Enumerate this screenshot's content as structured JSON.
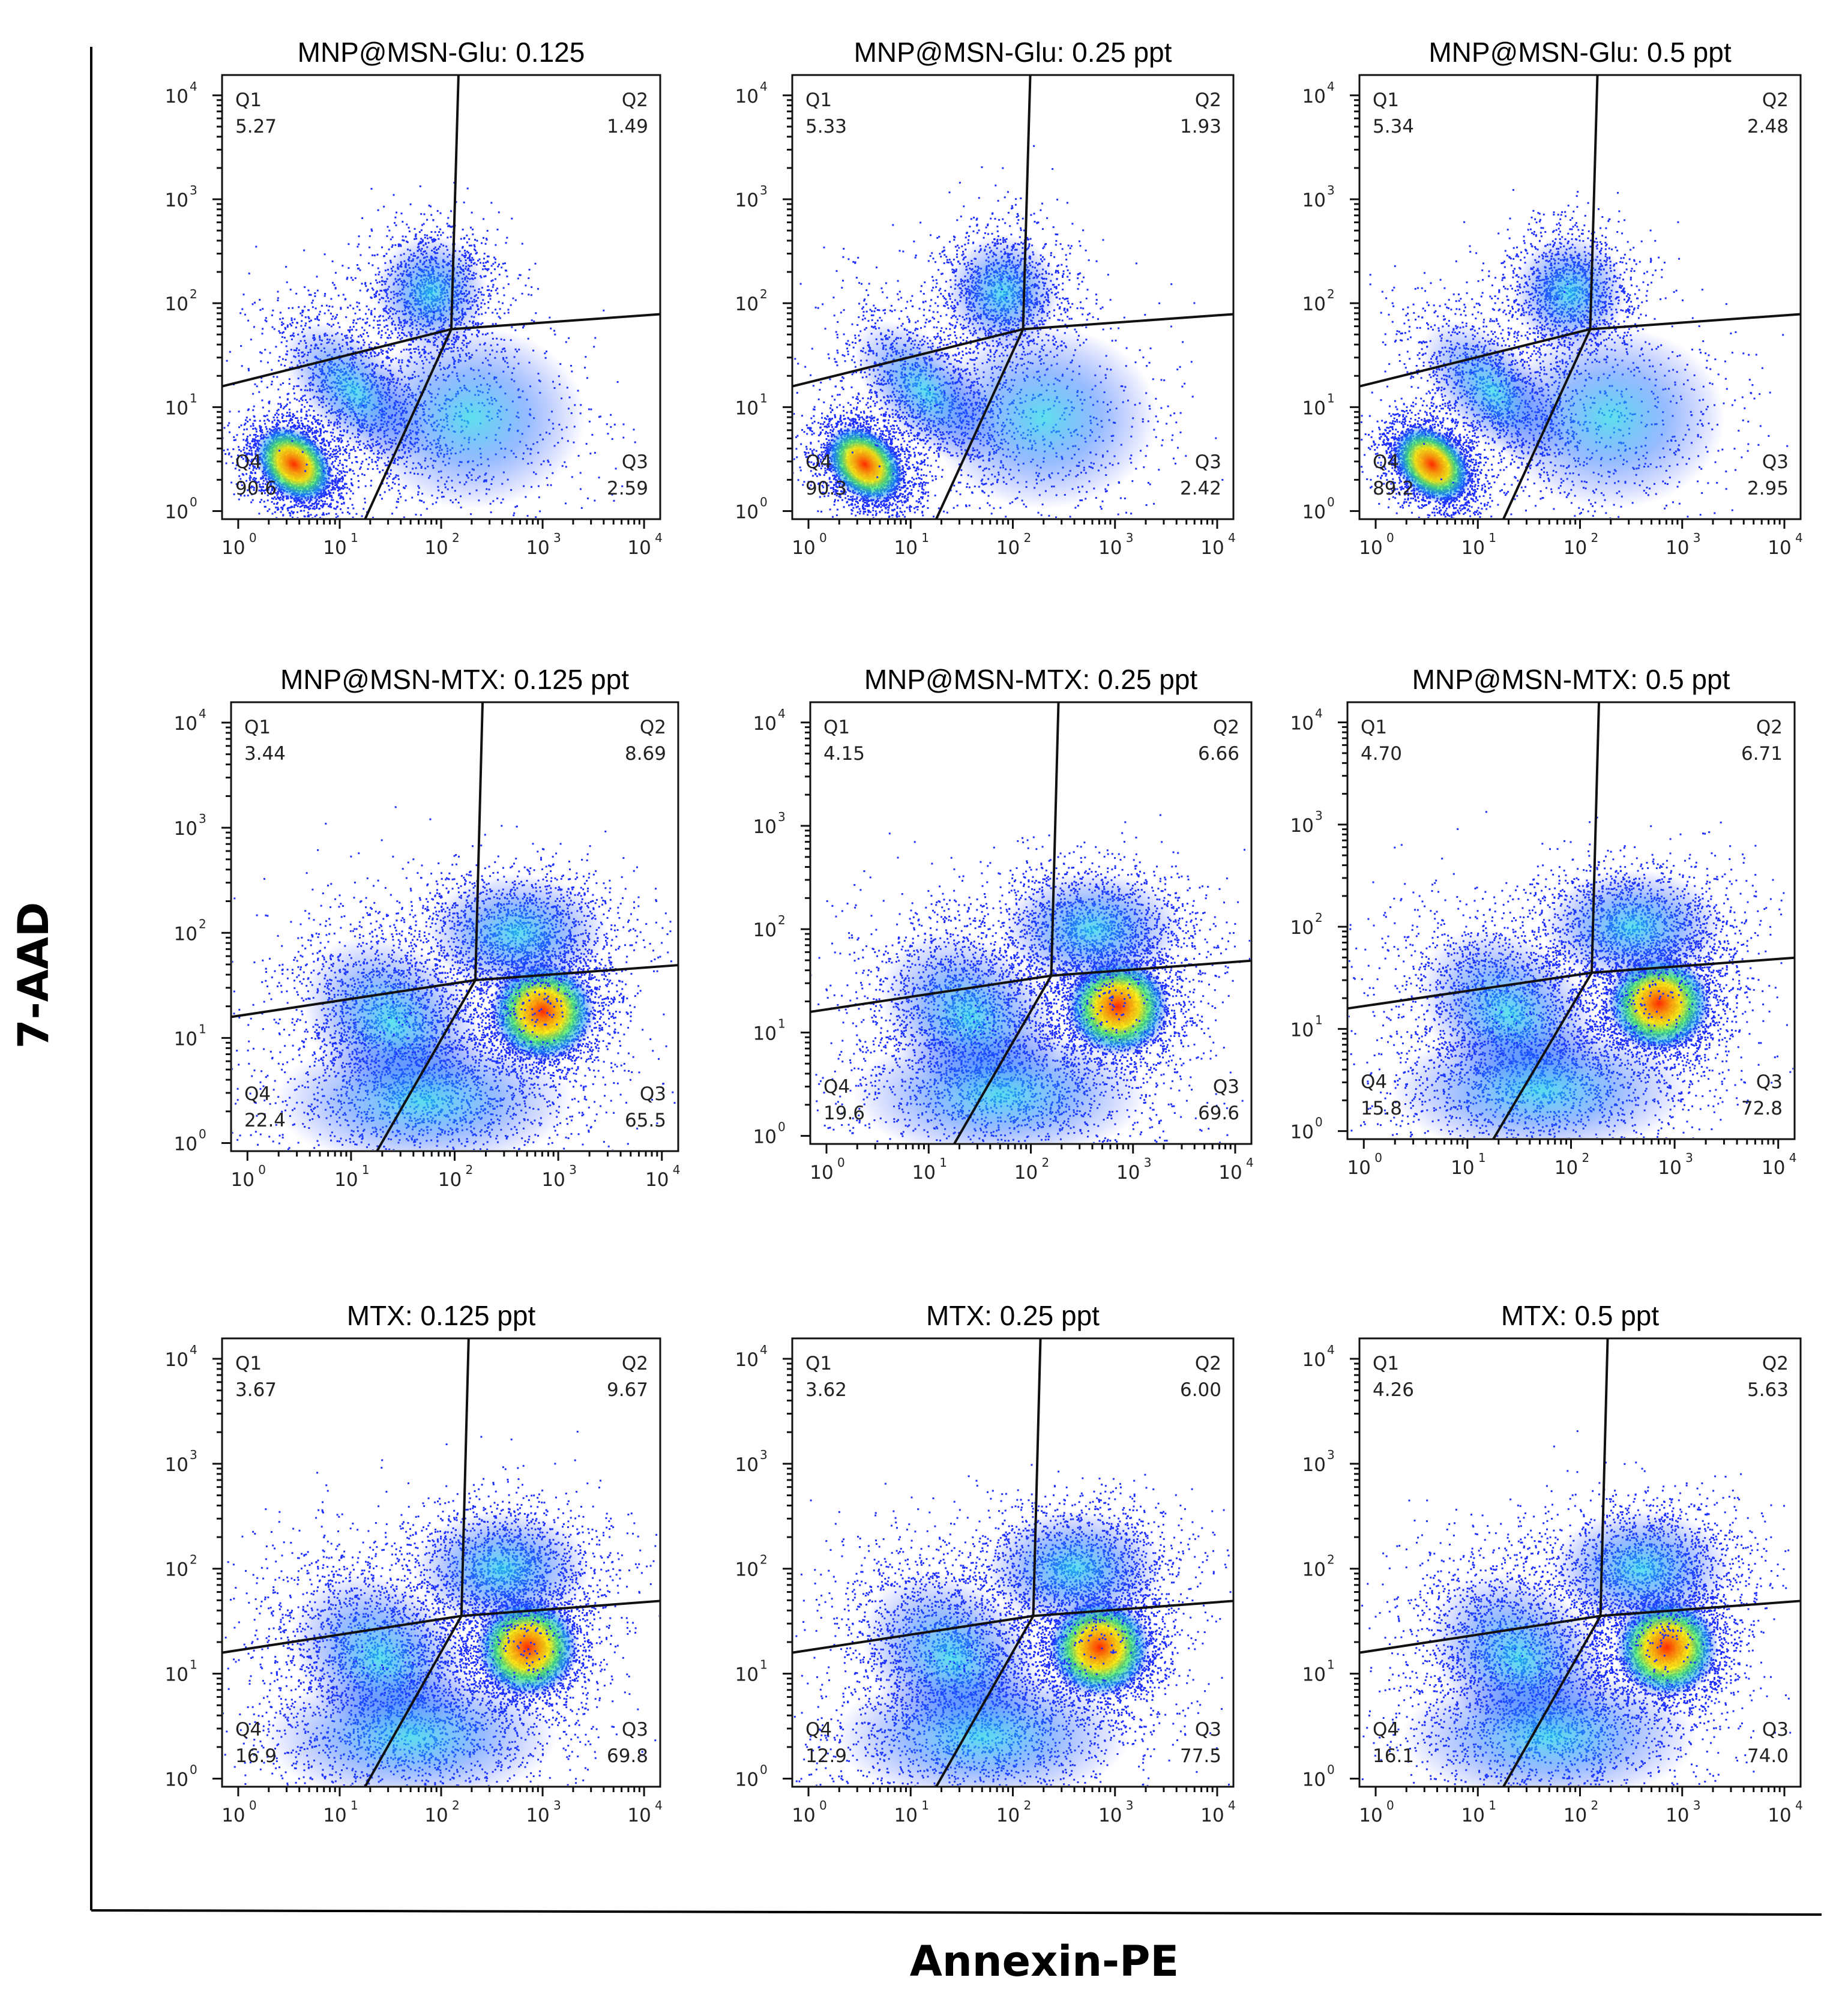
{
  "chart_data": {
    "type": "scatter",
    "subtype": "flow-cytometry-quadrant-density-plots",
    "x_axis_title": "Annexin-PE",
    "y_axis_title": "7-AAD",
    "axis_scale": "log",
    "axis_range": [
      1,
      10000
    ],
    "tick_labels": [
      "10",
      "10",
      "10",
      "10",
      "10"
    ],
    "tick_exponents": [
      "0",
      "1",
      "2",
      "3",
      "4"
    ],
    "quadrant_names": [
      "Q1",
      "Q2",
      "Q3",
      "Q4"
    ],
    "panels": [
      {
        "title": "MNP@MSN-Glu: 0.125",
        "q1": "5.27",
        "q2": "1.49",
        "q3": "2.59",
        "q4": "90.6"
      },
      {
        "title": "MNP@MSN-Glu: 0.25 ppt",
        "q1": "5.33",
        "q2": "1.93",
        "q3": "2.42",
        "q4": "90.3"
      },
      {
        "title": "MNP@MSN-Glu: 0.5 ppt",
        "q1": "5.34",
        "q2": "2.48",
        "q3": "2.95",
        "q4": "89.2"
      },
      {
        "title": "MNP@MSN-MTX: 0.125 ppt",
        "q1": "3.44",
        "q2": "8.69",
        "q3": "65.5",
        "q4": "22.4"
      },
      {
        "title": "MNP@MSN-MTX: 0.25 ppt",
        "q1": "4.15",
        "q2": "6.66",
        "q3": "69.6",
        "q4": "19.6"
      },
      {
        "title": "MNP@MSN-MTX: 0.5 ppt",
        "q1": "4.70",
        "q2": "6.71",
        "q3": "72.8",
        "q4": "15.8"
      },
      {
        "title": "MTX: 0.125 ppt",
        "q1": "3.67",
        "q2": "9.67",
        "q3": "69.8",
        "q4": "16.9"
      },
      {
        "title": "MTX: 0.25 ppt",
        "q1": "3.62",
        "q2": "6.00",
        "q3": "77.5",
        "q4": "12.9"
      },
      {
        "title": "MTX: 0.5 ppt",
        "q1": "4.26",
        "q2": "5.63",
        "q3": "74.0",
        "q4": "16.1"
      }
    ]
  }
}
